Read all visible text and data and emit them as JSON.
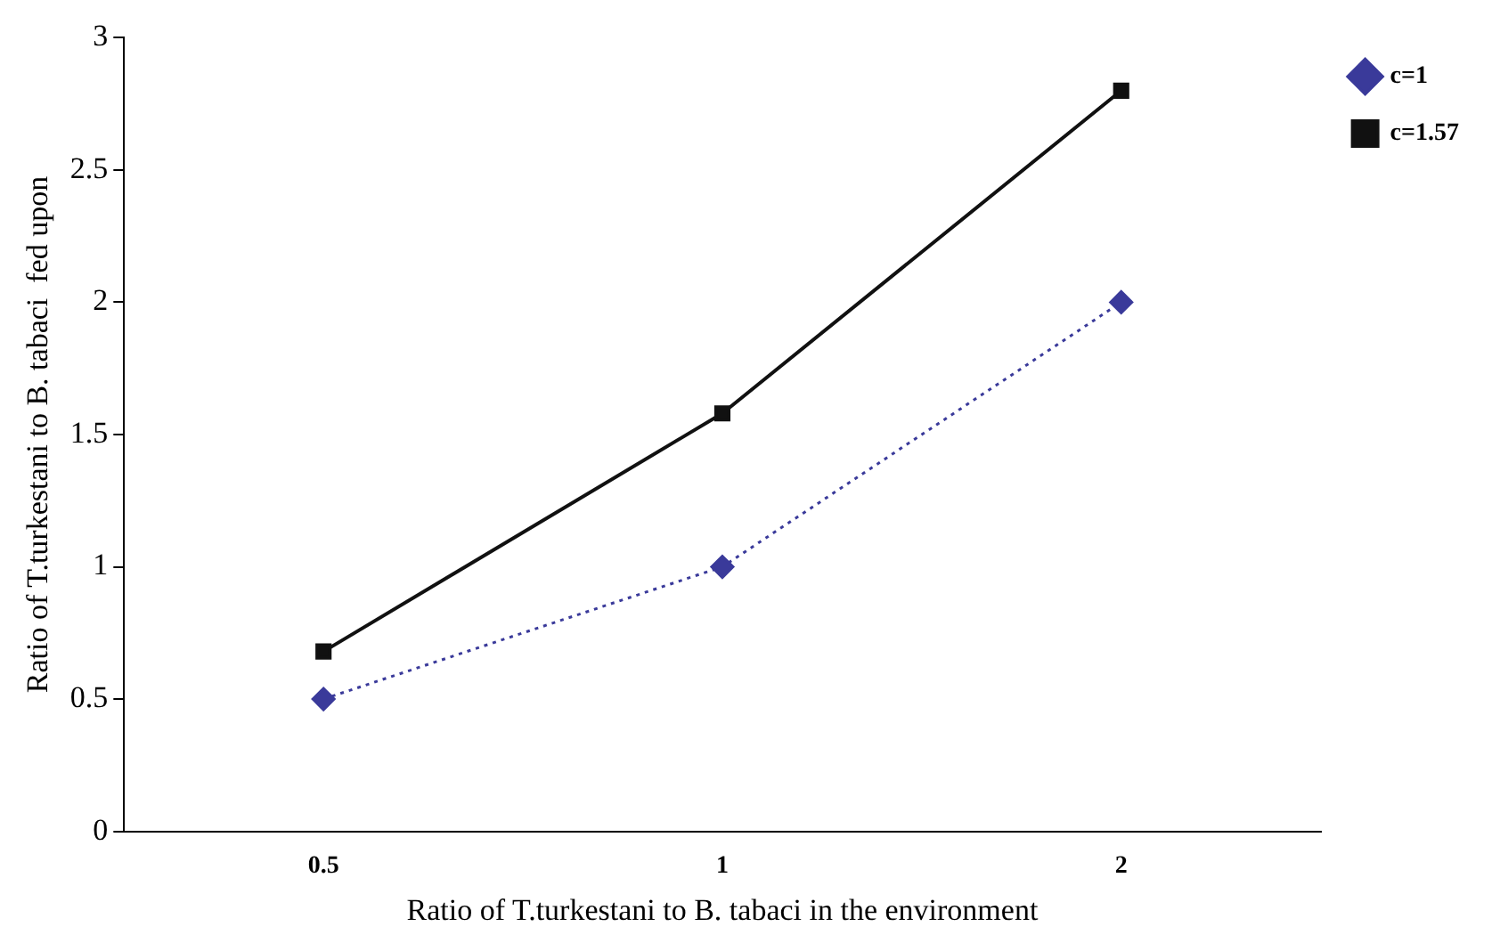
{
  "chart_data": {
    "type": "line",
    "xlabel": "Ratio of T.turkestani to B. tabaci in the environment",
    "ylabel": "Ratio of T.turkestani to B. tabaci  fed upon",
    "categories": [
      "0.5",
      "1",
      "2"
    ],
    "series": [
      {
        "name": "c=1",
        "color": "#3a3a9a",
        "values": [
          0.5,
          1,
          2
        ],
        "marker": "diamond",
        "line_style": "dotted"
      },
      {
        "name": "c=1.57",
        "color": "#111111",
        "values": [
          0.68,
          1.58,
          2.8
        ],
        "marker": "square",
        "line_style": "solid"
      }
    ],
    "ylim": [
      0,
      3
    ],
    "yticks": [
      0,
      0.5,
      1,
      1.5,
      2,
      2.5,
      3
    ],
    "grid": false,
    "legend": "top right"
  }
}
